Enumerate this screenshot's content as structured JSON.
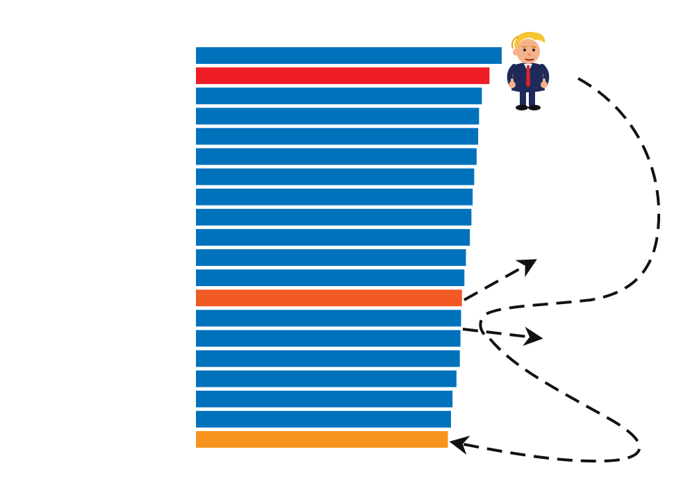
{
  "chart_data": {
    "type": "bar",
    "orientation": "horizontal",
    "title": "",
    "xlabel": "",
    "ylabel": "",
    "xlim": [
      0,
      100
    ],
    "grid": false,
    "legend": "none",
    "values": [
      100,
      96,
      93.5,
      92.6,
      92.3,
      91.8,
      91,
      90.5,
      90.1,
      89.6,
      88.3,
      87.8,
      87,
      86.7,
      86.5,
      86.3,
      85.2,
      83.9,
      83.4,
      82.4
    ],
    "colors": [
      "#0072bc",
      "#ee1c25",
      "#0072bc",
      "#0072bc",
      "#0072bc",
      "#0072bc",
      "#0072bc",
      "#0072bc",
      "#0072bc",
      "#0072bc",
      "#0072bc",
      "#0072bc",
      "#f15a24",
      "#0072bc",
      "#0072bc",
      "#0072bc",
      "#0072bc",
      "#0072bc",
      "#0072bc",
      "#f7941d"
    ],
    "annotations": [
      {
        "type": "cartoon",
        "icon": "trump-cartoon-icon",
        "attached_to_bar": 0
      },
      {
        "type": "dashed-arrow",
        "from_bar": 12,
        "direction": "up-right"
      },
      {
        "type": "dashed-arrow",
        "from_bar": 13,
        "direction": "right"
      },
      {
        "type": "dashed-curve-arrow",
        "from_bar": 12,
        "to_bar": 19,
        "via": "loop-right"
      }
    ]
  }
}
